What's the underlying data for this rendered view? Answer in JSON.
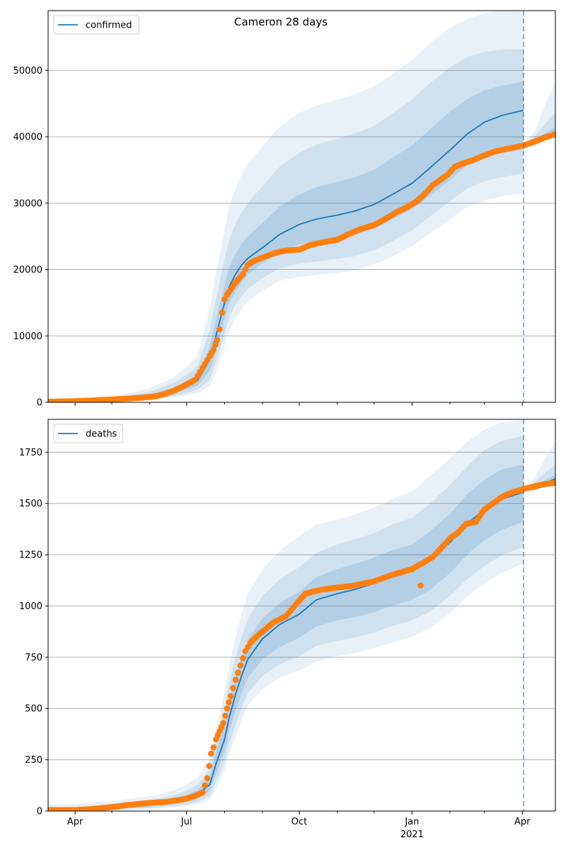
{
  "figure": {
    "title": "Cameron 28 days"
  },
  "colors": {
    "model_line": "#1f77b4",
    "observed_points": "#ff7f0e",
    "band": "#1f77b4",
    "forecast_marker": "#1f77b4",
    "grid": "#b0b0b0"
  },
  "chart_data": [
    {
      "type": "line",
      "panel": "top",
      "title": "Cameron 28 days",
      "legend": {
        "label": "confirmed",
        "placement": "top-left"
      },
      "xlabel": "",
      "ylabel": "",
      "x_ticks": [
        "Apr",
        "Jul",
        "Oct",
        "Jan",
        "Apr"
      ],
      "x_tick_year": "2021",
      "xlim": [
        "2020-03-10",
        "2021-04-28"
      ],
      "ylim": [
        0,
        59000
      ],
      "y_ticks": [
        0,
        10000,
        20000,
        30000,
        40000,
        50000
      ],
      "grid": "horizontal",
      "forecast_start": "2021-04-02",
      "model": {
        "name": "confirmed",
        "x": [
          "2020-03-10",
          "2020-04-01",
          "2020-05-01",
          "2020-06-01",
          "2020-06-20",
          "2020-07-01",
          "2020-07-10",
          "2020-07-20",
          "2020-07-25",
          "2020-08-01",
          "2020-08-05",
          "2020-08-10",
          "2020-08-15",
          "2020-08-20",
          "2020-09-01",
          "2020-09-15",
          "2020-10-01",
          "2020-10-15",
          "2020-11-01",
          "2020-11-15",
          "2020-12-01",
          "2020-12-15",
          "2021-01-01",
          "2021-01-15",
          "2021-02-01",
          "2021-02-15",
          "2021-03-01",
          "2021-03-15",
          "2021-04-02"
        ],
        "y": [
          0,
          100,
          350,
          900,
          1700,
          2500,
          3300,
          6500,
          10000,
          15000,
          17500,
          19300,
          20700,
          21700,
          23300,
          25300,
          26800,
          27600,
          28200,
          28800,
          29800,
          31200,
          33000,
          35200,
          38000,
          40400,
          42200,
          43200,
          44000
        ]
      },
      "band_1sigma": {
        "lower": [
          0,
          60,
          250,
          650,
          1300,
          1900,
          2500,
          4800,
          7800,
          12500,
          15000,
          16700,
          18000,
          19200,
          21000,
          22700,
          23800,
          24300,
          24800,
          25300,
          26200,
          27500,
          29100,
          31000,
          33500,
          35700,
          37300,
          38300,
          39300
        ],
        "upper": [
          0,
          140,
          460,
          1200,
          2200,
          3200,
          4200,
          8400,
          12500,
          17800,
          20400,
          22400,
          23900,
          25000,
          27000,
          29500,
          31300,
          32400,
          33200,
          33900,
          35000,
          36700,
          38700,
          41000,
          43800,
          45700,
          47000,
          47700,
          48300
        ]
      },
      "band_2sigma": {
        "lower": [
          0,
          20,
          150,
          450,
          950,
          1400,
          1900,
          3400,
          6000,
          10400,
          12900,
          14700,
          16000,
          17100,
          18700,
          20200,
          20900,
          21200,
          21600,
          22000,
          22900,
          24200,
          25900,
          27900,
          30300,
          32200,
          33300,
          33900,
          34500
        ],
        "upper": [
          0,
          220,
          600,
          1600,
          2900,
          4100,
          5500,
          11000,
          15500,
          21500,
          24600,
          26900,
          28600,
          30000,
          32600,
          35500,
          37600,
          38800,
          39700,
          40500,
          41600,
          43400,
          45600,
          48000,
          50500,
          52000,
          52800,
          53100,
          53200
        ]
      },
      "band_3sigma": {
        "lower": [
          0,
          0,
          80,
          300,
          700,
          1000,
          1400,
          2400,
          4500,
          8500,
          10900,
          12700,
          14100,
          15200,
          16800,
          18300,
          18900,
          19200,
          19500,
          19900,
          20700,
          21900,
          23500,
          25300,
          27600,
          29400,
          30400,
          31000,
          31500
        ],
        "upper": [
          0,
          320,
          800,
          2100,
          3700,
          5300,
          7000,
          14000,
          19500,
          26000,
          29600,
          32300,
          34300,
          35900,
          38600,
          41500,
          43600,
          44700,
          45600,
          46400,
          47600,
          49400,
          51600,
          54000,
          56400,
          57800,
          58600,
          59000,
          59000
        ]
      },
      "post_forecast_band": {
        "x": [
          "2021-04-02",
          "2021-04-12",
          "2021-04-20",
          "2021-04-28"
        ],
        "lower": [
          38700,
          39200,
          39600,
          39900
        ],
        "upper_1": [
          38700,
          39700,
          40600,
          41500
        ],
        "upper_2": [
          38700,
          40300,
          42000,
          43600
        ],
        "upper_3": [
          38700,
          41200,
          45000,
          48200
        ]
      },
      "observed": {
        "name": "confirmed observed",
        "x": [
          "2020-03-10",
          "2020-03-25",
          "2020-04-05",
          "2020-04-15",
          "2020-04-25",
          "2020-05-05",
          "2020-05-15",
          "2020-05-25",
          "2020-06-05",
          "2020-06-12",
          "2020-06-20",
          "2020-06-27",
          "2020-07-03",
          "2020-07-08",
          "2020-07-12",
          "2020-07-16",
          "2020-07-20",
          "2020-07-23",
          "2020-07-26",
          "2020-07-28",
          "2020-07-30",
          "2020-08-01",
          "2020-08-03",
          "2020-08-06",
          "2020-08-09",
          "2020-08-12",
          "2020-08-16",
          "2020-08-20",
          "2020-08-25",
          "2020-09-01",
          "2020-09-08",
          "2020-09-15",
          "2020-09-22",
          "2020-10-01",
          "2020-10-10",
          "2020-10-20",
          "2020-11-01",
          "2020-11-10",
          "2020-11-20",
          "2020-12-01",
          "2020-12-10",
          "2020-12-20",
          "2020-12-28",
          "2021-01-05",
          "2021-01-12",
          "2021-01-18",
          "2021-01-24",
          "2021-01-30",
          "2021-02-05",
          "2021-02-12",
          "2021-02-20",
          "2021-03-01",
          "2021-03-10",
          "2021-03-20",
          "2021-04-02",
          "2021-04-10",
          "2021-04-18",
          "2021-04-28"
        ],
        "y": [
          100,
          150,
          200,
          280,
          380,
          480,
          580,
          700,
          900,
          1200,
          1700,
          2300,
          2900,
          3400,
          4600,
          5800,
          7000,
          7900,
          9400,
          11000,
          13500,
          15500,
          16200,
          17000,
          17800,
          18500,
          19300,
          20700,
          21300,
          21800,
          22300,
          22700,
          22900,
          23000,
          23700,
          24100,
          24500,
          25300,
          26100,
          26700,
          27600,
          28700,
          29400,
          30300,
          31500,
          32700,
          33500,
          34300,
          35500,
          36000,
          36500,
          37200,
          37800,
          38200,
          38700,
          39200,
          39800,
          40400
        ]
      }
    },
    {
      "type": "line",
      "panel": "bottom",
      "title": "",
      "legend": {
        "label": "deaths",
        "placement": "top-left"
      },
      "xlabel": "",
      "ylabel": "",
      "x_ticks": [
        "Apr",
        "Jul",
        "Oct",
        "Jan",
        "Apr"
      ],
      "x_tick_year": "2021",
      "xlim": [
        "2020-03-10",
        "2021-04-28"
      ],
      "ylim": [
        0,
        1910
      ],
      "y_ticks": [
        0,
        250,
        500,
        750,
        1000,
        1250,
        1500,
        1750
      ],
      "grid": "horizontal",
      "forecast_start": "2021-04-02",
      "model": {
        "name": "deaths",
        "x": [
          "2020-03-10",
          "2020-04-01",
          "2020-05-01",
          "2020-06-01",
          "2020-06-20",
          "2020-07-01",
          "2020-07-10",
          "2020-07-20",
          "2020-07-25",
          "2020-08-01",
          "2020-08-05",
          "2020-08-10",
          "2020-08-15",
          "2020-08-20",
          "2020-09-01",
          "2020-09-15",
          "2020-10-01",
          "2020-10-15",
          "2020-11-01",
          "2020-11-15",
          "2020-12-01",
          "2020-12-15",
          "2021-01-01",
          "2021-01-15",
          "2021-02-01",
          "2021-02-15",
          "2021-03-01",
          "2021-03-15",
          "2021-04-02"
        ],
        "y": [
          5,
          7,
          15,
          30,
          45,
          60,
          80,
          130,
          230,
          350,
          460,
          570,
          660,
          740,
          840,
          910,
          960,
          1030,
          1060,
          1080,
          1110,
          1140,
          1170,
          1220,
          1310,
          1400,
          1470,
          1520,
          1555
        ]
      },
      "band_1sigma": {
        "lower": [
          3,
          4,
          10,
          22,
          35,
          45,
          60,
          100,
          180,
          290,
          390,
          490,
          575,
          650,
          740,
          800,
          845,
          900,
          930,
          945,
          970,
          1000,
          1030,
          1075,
          1160,
          1250,
          1320,
          1370,
          1410
        ],
        "upper": [
          8,
          11,
          21,
          40,
          58,
          78,
          102,
          165,
          290,
          420,
          540,
          655,
          750,
          835,
          940,
          1015,
          1070,
          1140,
          1180,
          1205,
          1235,
          1270,
          1300,
          1360,
          1450,
          1545,
          1615,
          1665,
          1690
        ]
      },
      "band_2sigma": {
        "lower": [
          1,
          2,
          6,
          15,
          25,
          33,
          45,
          75,
          140,
          240,
          330,
          420,
          505,
          575,
          660,
          715,
          755,
          805,
          830,
          845,
          870,
          900,
          930,
          970,
          1050,
          1130,
          1195,
          1245,
          1290
        ],
        "upper": [
          14,
          18,
          30,
          52,
          75,
          100,
          130,
          205,
          350,
          500,
          630,
          750,
          850,
          940,
          1050,
          1130,
          1190,
          1260,
          1300,
          1325,
          1355,
          1395,
          1430,
          1495,
          1590,
          1680,
          1760,
          1805,
          1830
        ]
      },
      "band_3sigma": {
        "lower": [
          0,
          0,
          3,
          10,
          18,
          24,
          33,
          55,
          110,
          200,
          280,
          365,
          445,
          515,
          595,
          650,
          685,
          730,
          755,
          770,
          795,
          820,
          850,
          890,
          965,
          1045,
          1110,
          1160,
          1210
        ],
        "upper": [
          30,
          35,
          48,
          72,
          100,
          130,
          165,
          250,
          410,
          580,
          720,
          850,
          960,
          1060,
          1180,
          1270,
          1340,
          1400,
          1420,
          1445,
          1480,
          1520,
          1560,
          1630,
          1720,
          1800,
          1860,
          1895,
          1905
        ]
      },
      "post_forecast_band": {
        "x": [
          "2021-04-02",
          "2021-04-12",
          "2021-04-20",
          "2021-04-28"
        ],
        "lower": [
          1560,
          1565,
          1585,
          1600
        ],
        "upper_1": [
          1560,
          1590,
          1615,
          1640
        ],
        "upper_2": [
          1560,
          1610,
          1650,
          1690
        ],
        "upper_3": [
          1560,
          1640,
          1720,
          1800
        ]
      },
      "observed": {
        "name": "deaths observed",
        "x": [
          "2020-03-10",
          "2020-04-01",
          "2020-04-15",
          "2020-05-01",
          "2020-05-15",
          "2020-06-01",
          "2020-06-15",
          "2020-07-01",
          "2020-07-08",
          "2020-07-14",
          "2020-07-18",
          "2020-07-21",
          "2020-07-23",
          "2020-07-25",
          "2020-07-28",
          "2020-07-31",
          "2020-08-03",
          "2020-08-06",
          "2020-08-10",
          "2020-08-14",
          "2020-08-18",
          "2020-08-22",
          "2020-08-27",
          "2020-09-02",
          "2020-09-10",
          "2020-09-20",
          "2020-09-30",
          "2020-10-03",
          "2020-10-06",
          "2020-10-12",
          "2020-10-20",
          "2020-11-01",
          "2020-11-15",
          "2020-12-01",
          "2020-12-15",
          "2021-01-01",
          "2021-01-10",
          "2021-01-18",
          "2021-01-26",
          "2021-02-01",
          "2021-02-08",
          "2021-02-14",
          "2021-02-22",
          "2021-03-01",
          "2021-03-08",
          "2021-03-15",
          "2021-03-22",
          "2021-04-02",
          "2021-04-12",
          "2021-04-20",
          "2021-04-28"
        ],
        "y": [
          5,
          5,
          10,
          20,
          30,
          40,
          45,
          60,
          75,
          90,
          160,
          280,
          310,
          350,
          390,
          430,
          500,
          560,
          640,
          710,
          780,
          820,
          850,
          880,
          920,
          950,
          1020,
          1040,
          1060,
          1070,
          1080,
          1090,
          1100,
          1120,
          1150,
          1180,
          1210,
          1240,
          1290,
          1330,
          1360,
          1400,
          1410,
          1470,
          1500,
          1530,
          1550,
          1570,
          1585,
          1595,
          1600
        ]
      },
      "observed_outlier": {
        "x": "2021-01-08",
        "y": 1100
      }
    }
  ]
}
